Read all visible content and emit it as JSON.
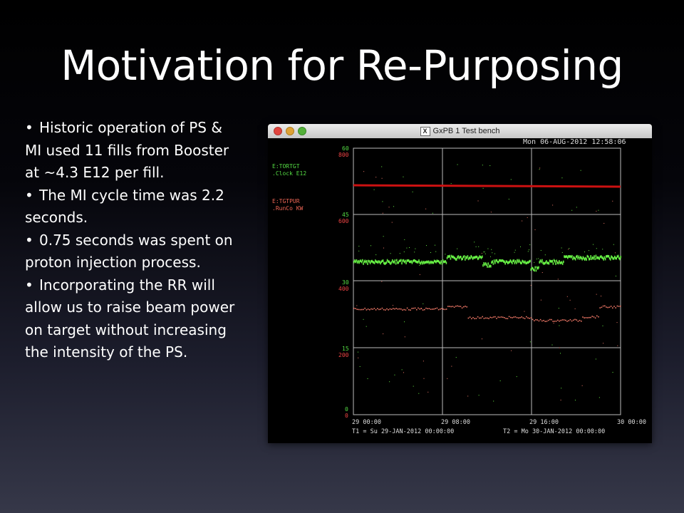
{
  "slide": {
    "title": "Motivation for Re-Purposing",
    "bullet_glyph": "•",
    "bullets": [
      "Historic operation of PS & MI used 11 fills from Booster at ~4.3 E12 per fill.",
      "The MI cycle time was 2.2 seconds.",
      "0.75 seconds was spent on proton injection process.",
      "Incorporating the RR will allow us to raise beam power on target without increasing the intensity of the PS."
    ]
  },
  "window": {
    "title": "GxPB 1 Test bench",
    "x_icon_label": "X",
    "timestamp": "Mon 06-AUG-2012 12:58:06",
    "colors": {
      "red_trace": "#cc1111",
      "green_trace": "#66ee44",
      "salmon_trace": "#ee7766",
      "axis_text_red": "#ee4444",
      "legend_green": "#55dd44",
      "grid": "#bbbbbb",
      "footer_text": "#dddddd"
    },
    "legend": [
      {
        "name": "E:TORTGT",
        "units": ".Clock  E12"
      },
      {
        "name": "E:TGTPUR",
        "units": ".RunCo  KW"
      }
    ],
    "axis_left_outer": [
      "60",
      "45",
      "30",
      "15",
      "0"
    ],
    "axis_left_inner": [
      "800",
      "600",
      "400",
      "200",
      "0"
    ],
    "x_ticks": [
      "29 00:00",
      "29 08:00",
      "29 16:00",
      "30 00:00"
    ],
    "t1_label": "T1 = Su 29-JAN-2012 00:00:00",
    "t2_label": "T2 = Mo 30-JAN-2012 00:00:00"
  }
}
